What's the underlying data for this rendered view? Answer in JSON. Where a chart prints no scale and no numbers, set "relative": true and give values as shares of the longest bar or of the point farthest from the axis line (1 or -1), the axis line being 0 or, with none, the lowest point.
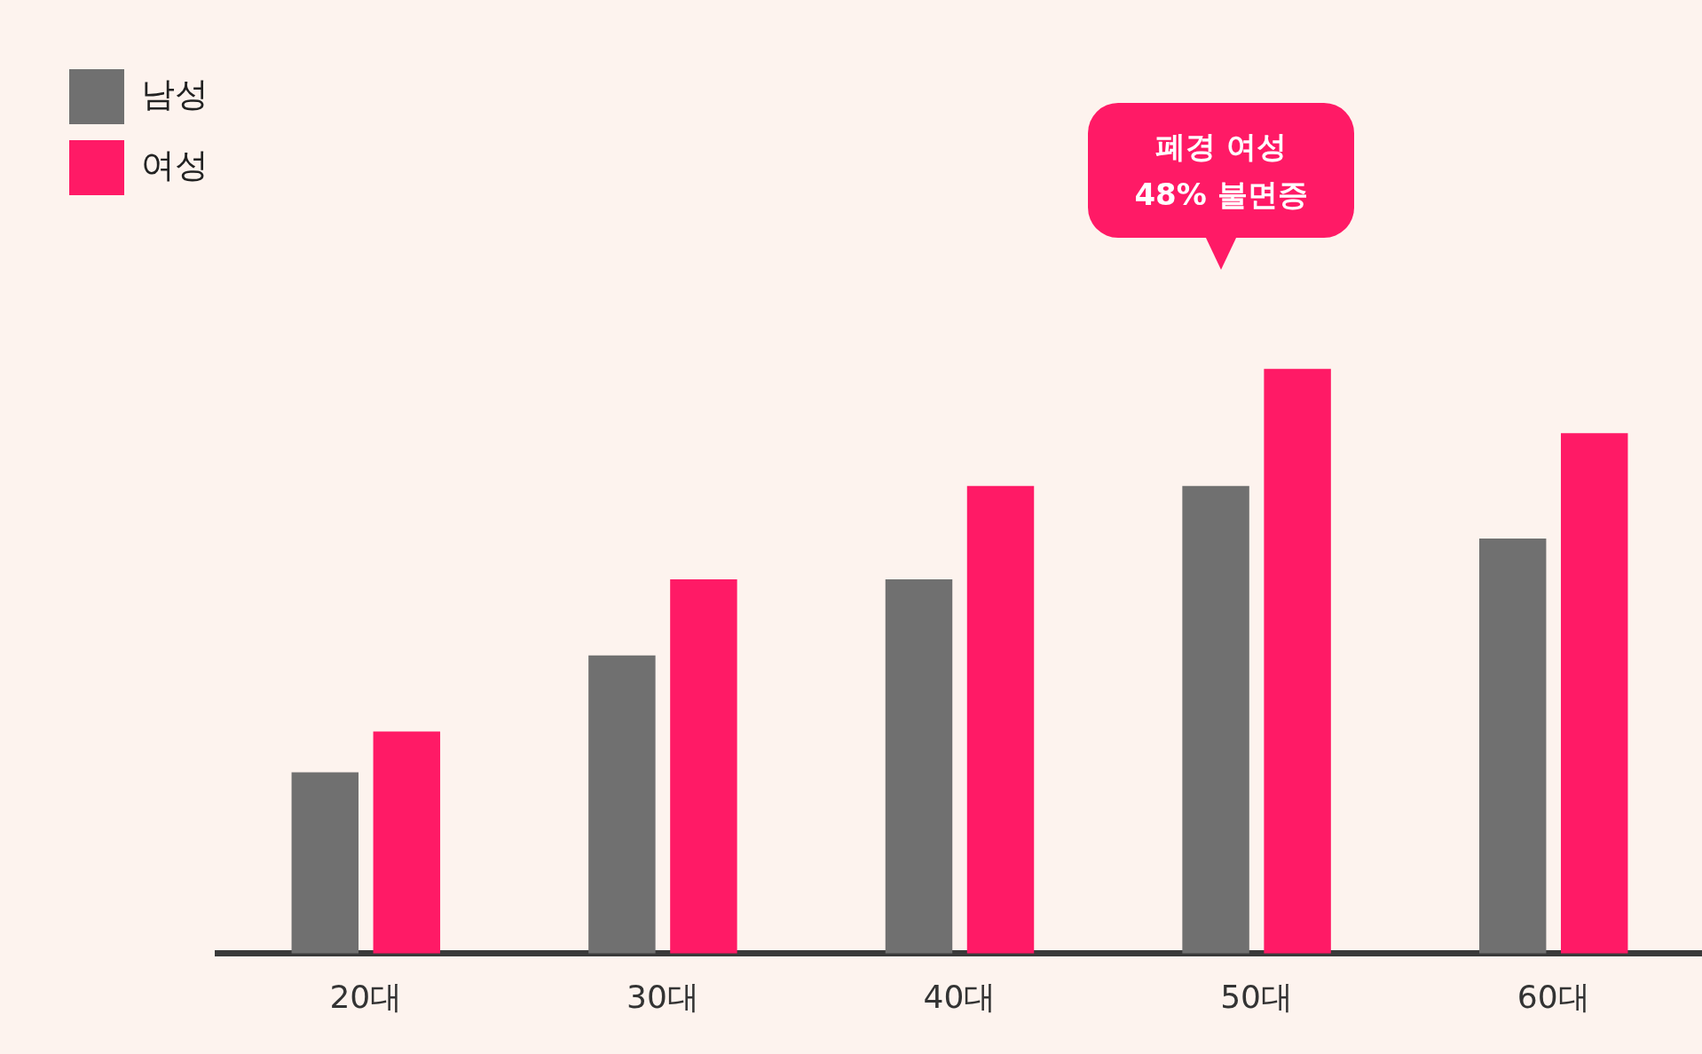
{
  "chart_data": {
    "type": "bar",
    "relative": true,
    "categories": [
      "20대",
      "30대",
      "40대",
      "50대",
      "60대"
    ],
    "series": [
      {
        "name": "남성",
        "color": "#707070",
        "values": [
          0.31,
          0.51,
          0.64,
          0.8,
          0.71
        ]
      },
      {
        "name": "여성",
        "color": "#ff1a66",
        "values": [
          0.38,
          0.64,
          0.8,
          1,
          0.89
        ]
      }
    ],
    "annotations": [
      "폐경 여성 48% 불면증"
    ],
    "legend": "top left",
    "grid": false
  }
}
